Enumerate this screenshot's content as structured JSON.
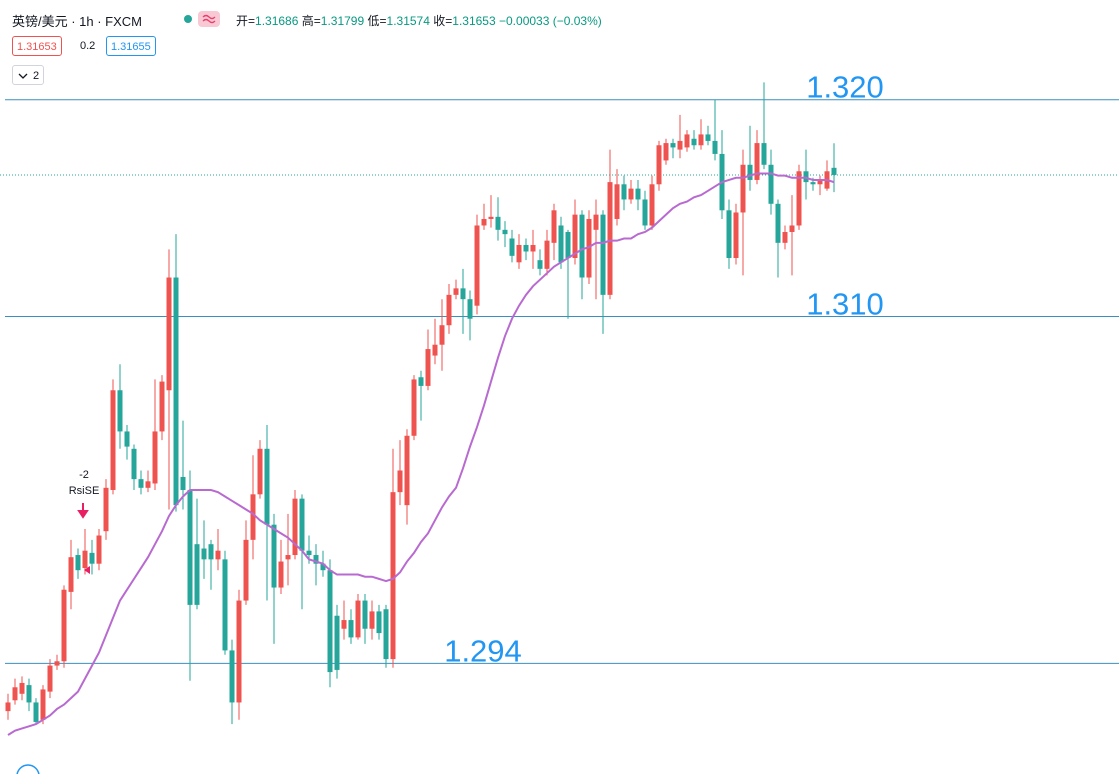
{
  "chart_data": {
    "type": "candlestick",
    "symbol": "英镑/美元 · 1h · FXCM",
    "ohlc_labels": [
      "开=",
      "高=",
      "低=",
      "收="
    ],
    "change": "−0.00033 (−0.03%)",
    "bid": 1.31653,
    "spread": 0.2,
    "ask": 1.31655,
    "indicator_count": 2,
    "signal": {
      "label": "-2",
      "name": "RsiSE"
    },
    "up_color": "#ef5350",
    "down_color": "#26a69a",
    "ylim": [
      1.2889,
      1.3246
    ],
    "horizontal_lines": [
      {
        "value": 1.32,
        "label": "1.320"
      },
      {
        "value": 1.31,
        "label": "1.310"
      },
      {
        "value": 1.294,
        "label": "1.294"
      }
    ],
    "line_color": "#3b8fc0",
    "label_color": "#2196f3",
    "open": [
      1.2918,
      1.2923,
      1.2926,
      1.293,
      1.2922,
      1.2914,
      1.2927,
      1.2939,
      1.2941,
      1.2973,
      1.299,
      1.2984,
      1.2991,
      1.2986,
      1.3001,
      1.302,
      1.3066,
      1.3047,
      1.3039,
      1.3025,
      1.3021,
      1.3023,
      1.3047,
      1.3066,
      1.3118,
      1.3026,
      1.302,
      1.2995,
      1.2993,
      1.2995,
      1.2988,
      1.2988,
      1.2946,
      1.2922,
      1.2969,
      1.2997,
      1.3018,
      1.3039,
      1.3004,
      1.2975,
      1.2988,
      1.299,
      1.3016,
      1.2992,
      1.299,
      1.2986,
      1.2983,
      1.2962,
      1.2956,
      1.296,
      1.2952,
      1.2969,
      1.2956,
      1.2964,
      1.2965,
      1.2942,
      1.3019,
      1.3013,
      1.3045,
      1.3072,
      1.3068,
      1.3082,
      1.3087,
      1.3096,
      1.311,
      1.3113,
      1.3108,
      1.3105,
      1.3142,
      1.3145,
      1.3146,
      1.314,
      1.3136,
      1.3125,
      1.3133,
      1.313,
      1.3126,
      1.3122,
      1.3134,
      1.3142,
      1.3139,
      1.3127,
      1.3147,
      1.3118,
      1.314,
      1.3147,
      1.311,
      1.3145,
      1.3161,
      1.3154,
      1.3159,
      1.3154,
      1.3142,
      1.3161,
      1.3172,
      1.318,
      1.3177,
      1.3178,
      1.3182,
      1.3179,
      1.3184,
      1.3181,
      1.3175,
      1.3149,
      1.3127,
      1.3148,
      1.317,
      1.3163,
      1.318,
      1.317,
      1.3152,
      1.3134,
      1.3139,
      1.3142,
      1.3167,
      1.3162,
      1.3161,
      1.3159,
      1.31686
    ],
    "high": [
      1.2926,
      1.2933,
      1.2934,
      1.2933,
      1.2924,
      1.293,
      1.2942,
      1.2944,
      1.2976,
      1.2997,
      1.2993,
      1.3002,
      1.2997,
      1.3002,
      1.3025,
      1.3071,
      1.3078,
      1.305,
      1.3041,
      1.3029,
      1.3029,
      1.3071,
      1.3073,
      1.3131,
      1.3138,
      1.3052,
      1.3029,
      1.3016,
      1.3006,
      1.2997,
      1.3002,
      1.2992,
      1.2951,
      1.2974,
      1.3006,
      1.3036,
      1.3043,
      1.305,
      1.3009,
      1.2997,
      1.3009,
      1.302,
      1.3018,
      1.2999,
      1.2995,
      1.2992,
      1.2988,
      1.2967,
      1.2969,
      1.2965,
      1.2972,
      1.2972,
      1.2969,
      1.2967,
      1.2967,
      1.3039,
      1.3043,
      1.3048,
      1.3073,
      1.3075,
      1.3094,
      1.3099,
      1.3108,
      1.3115,
      1.3117,
      1.3122,
      1.3112,
      1.3147,
      1.3152,
      1.3156,
      1.3155,
      1.3144,
      1.314,
      1.3138,
      1.3136,
      1.314,
      1.3131,
      1.314,
      1.3152,
      1.3146,
      1.314,
      1.3154,
      1.3149,
      1.3149,
      1.3154,
      1.3149,
      1.3177,
      1.3168,
      1.3165,
      1.3163,
      1.3163,
      1.3158,
      1.3165,
      1.3181,
      1.3182,
      1.3182,
      1.3193,
      1.3186,
      1.3186,
      1.3191,
      1.3188,
      1.32,
      1.3186,
      1.3154,
      1.3152,
      1.3177,
      1.3188,
      1.3186,
      1.3208,
      1.3177,
      1.3154,
      1.3142,
      1.3156,
      1.317,
      1.3177,
      1.3164,
      1.3165,
      1.3172,
      1.31799
    ],
    "low": [
      1.2914,
      1.2921,
      1.2923,
      1.2918,
      1.2912,
      1.2912,
      1.2924,
      1.2937,
      1.2938,
      1.2965,
      1.2979,
      1.2981,
      1.2981,
      1.2983,
      1.2997,
      1.3018,
      1.3039,
      1.3034,
      1.302,
      1.3018,
      1.3019,
      1.302,
      1.3043,
      1.3011,
      1.301,
      1.3011,
      1.2932,
      1.2965,
      1.2979,
      1.2974,
      1.2983,
      1.2944,
      1.2912,
      1.2914,
      1.2967,
      1.2988,
      1.3016,
      1.2969,
      1.2949,
      1.2972,
      1.2976,
      1.2988,
      1.2965,
      1.2986,
      1.2976,
      1.298,
      1.2929,
      1.2933,
      1.2951,
      1.2949,
      1.2951,
      1.2949,
      1.2951,
      1.2951,
      1.2938,
      1.2938,
      1.3013,
      1.3004,
      1.3043,
      1.3052,
      1.3066,
      1.3078,
      1.3075,
      1.3092,
      1.3108,
      1.3092,
      1.3089,
      1.3101,
      1.314,
      1.3141,
      1.3135,
      1.3132,
      1.3125,
      1.3122,
      1.3126,
      1.3122,
      1.3119,
      1.3119,
      1.3126,
      1.3122,
      1.3099,
      1.3124,
      1.3108,
      1.3115,
      1.3108,
      1.3092,
      1.3108,
      1.3142,
      1.3149,
      1.3152,
      1.3149,
      1.314,
      1.314,
      1.3158,
      1.317,
      1.3173,
      1.3173,
      1.3176,
      1.3177,
      1.3177,
      1.3179,
      1.3172,
      1.3145,
      1.3122,
      1.3124,
      1.3119,
      1.3158,
      1.3161,
      1.3168,
      1.3147,
      1.3118,
      1.3131,
      1.3119,
      1.314,
      1.3154,
      1.3158,
      1.3156,
      1.3158,
      1.31574
    ],
    "close": [
      1.2922,
      1.2929,
      1.2931,
      1.2922,
      1.2913,
      1.2928,
      1.2939,
      1.2941,
      1.2974,
      1.2989,
      1.2983,
      1.2992,
      1.2986,
      1.2999,
      1.3021,
      1.3066,
      1.3047,
      1.304,
      1.3025,
      1.3021,
      1.3024,
      1.3047,
      1.307,
      1.3118,
      1.3013,
      1.302,
      1.2967,
      1.2967,
      1.2988,
      1.2988,
      1.2992,
      1.2946,
      1.2922,
      1.2969,
      1.2997,
      1.3018,
      1.3039,
      1.3004,
      1.2975,
      1.2987,
      1.299,
      1.3016,
      1.2992,
      1.299,
      1.2986,
      1.2983,
      1.2936,
      1.2937,
      1.296,
      1.2952,
      1.2969,
      1.2956,
      1.2964,
      1.2954,
      1.2942,
      1.3019,
      1.3029,
      1.3045,
      1.3071,
      1.3068,
      1.3085,
      1.3087,
      1.3096,
      1.311,
      1.3113,
      1.3108,
      1.3099,
      1.3142,
      1.3145,
      1.3146,
      1.314,
      1.3138,
      1.3128,
      1.3133,
      1.313,
      1.3133,
      1.3122,
      1.3135,
      1.3149,
      1.3125,
      1.3127,
      1.3147,
      1.3118,
      1.3145,
      1.3147,
      1.311,
      1.3162,
      1.3161,
      1.3154,
      1.3159,
      1.3154,
      1.3142,
      1.3161,
      1.3179,
      1.318,
      1.3178,
      1.3181,
      1.3184,
      1.3179,
      1.3184,
      1.3181,
      1.3175,
      1.3149,
      1.3127,
      1.3148,
      1.317,
      1.3163,
      1.318,
      1.317,
      1.3152,
      1.3134,
      1.3139,
      1.3142,
      1.3167,
      1.3162,
      1.3161,
      1.3163,
      1.3167,
      1.31653
    ],
    "ma": {
      "color": "#b86ad0",
      "values": [
        1.2907,
        1.2909,
        1.291,
        1.2911,
        1.2912,
        1.2914,
        1.2916,
        1.2919,
        1.2921,
        1.2924,
        1.2927,
        1.2933,
        1.2939,
        1.2945,
        1.2953,
        1.2961,
        1.2969,
        1.2974,
        1.2979,
        1.2984,
        1.2989,
        1.2995,
        1.3001,
        1.3008,
        1.3013,
        1.3017,
        1.302,
        1.302,
        1.302,
        1.302,
        1.3019,
        1.3017,
        1.3015,
        1.3013,
        1.3011,
        1.3009,
        1.3006,
        1.3004,
        1.3002,
        1.3,
        1.2998,
        1.2995,
        1.2992,
        1.2988,
        1.2987,
        1.2986,
        1.2983,
        1.2981,
        1.2981,
        1.2981,
        1.2981,
        1.298,
        1.298,
        1.2979,
        1.2978,
        1.2979,
        1.2982,
        1.2987,
        1.2991,
        1.2996,
        1.3,
        1.3006,
        1.3012,
        1.3017,
        1.3021,
        1.303,
        1.304,
        1.3049,
        1.3059,
        1.307,
        1.3081,
        1.3091,
        1.3099,
        1.3105,
        1.311,
        1.3114,
        1.3117,
        1.312,
        1.3123,
        1.3125,
        1.3127,
        1.3129,
        1.3131,
        1.3132,
        1.3134,
        1.3134,
        1.3135,
        1.3135,
        1.3136,
        1.3136,
        1.3138,
        1.3139,
        1.3141,
        1.3144,
        1.3147,
        1.315,
        1.3152,
        1.3153,
        1.3155,
        1.3156,
        1.3158,
        1.316,
        1.3162,
        1.3163,
        1.3164,
        1.3164,
        1.3165,
        1.3166,
        1.3166,
        1.3166,
        1.3165,
        1.3165,
        1.3164,
        1.3164,
        1.3164,
        1.3163,
        1.3163,
        1.3163,
        1.3162
      ]
    }
  }
}
